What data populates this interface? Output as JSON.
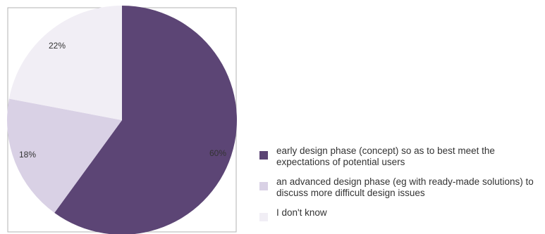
{
  "chart_data": {
    "type": "pie",
    "title": "",
    "slices": [
      {
        "label": "early design phase (concept) so as to best meet the expectations of potential users",
        "value": 60,
        "value_label": "60%",
        "color": "#5c4575"
      },
      {
        "label": "an advanced design phase (eg with ready-made solutions) to discuss more difficult design issues",
        "value": 18,
        "value_label": "18%",
        "color": "#d9d1e5"
      },
      {
        "label": "I don't know",
        "value": 22,
        "value_label": "22%",
        "color": "#f1eef5"
      }
    ],
    "legend_position": "right",
    "start": "top",
    "direction": "clockwise"
  }
}
